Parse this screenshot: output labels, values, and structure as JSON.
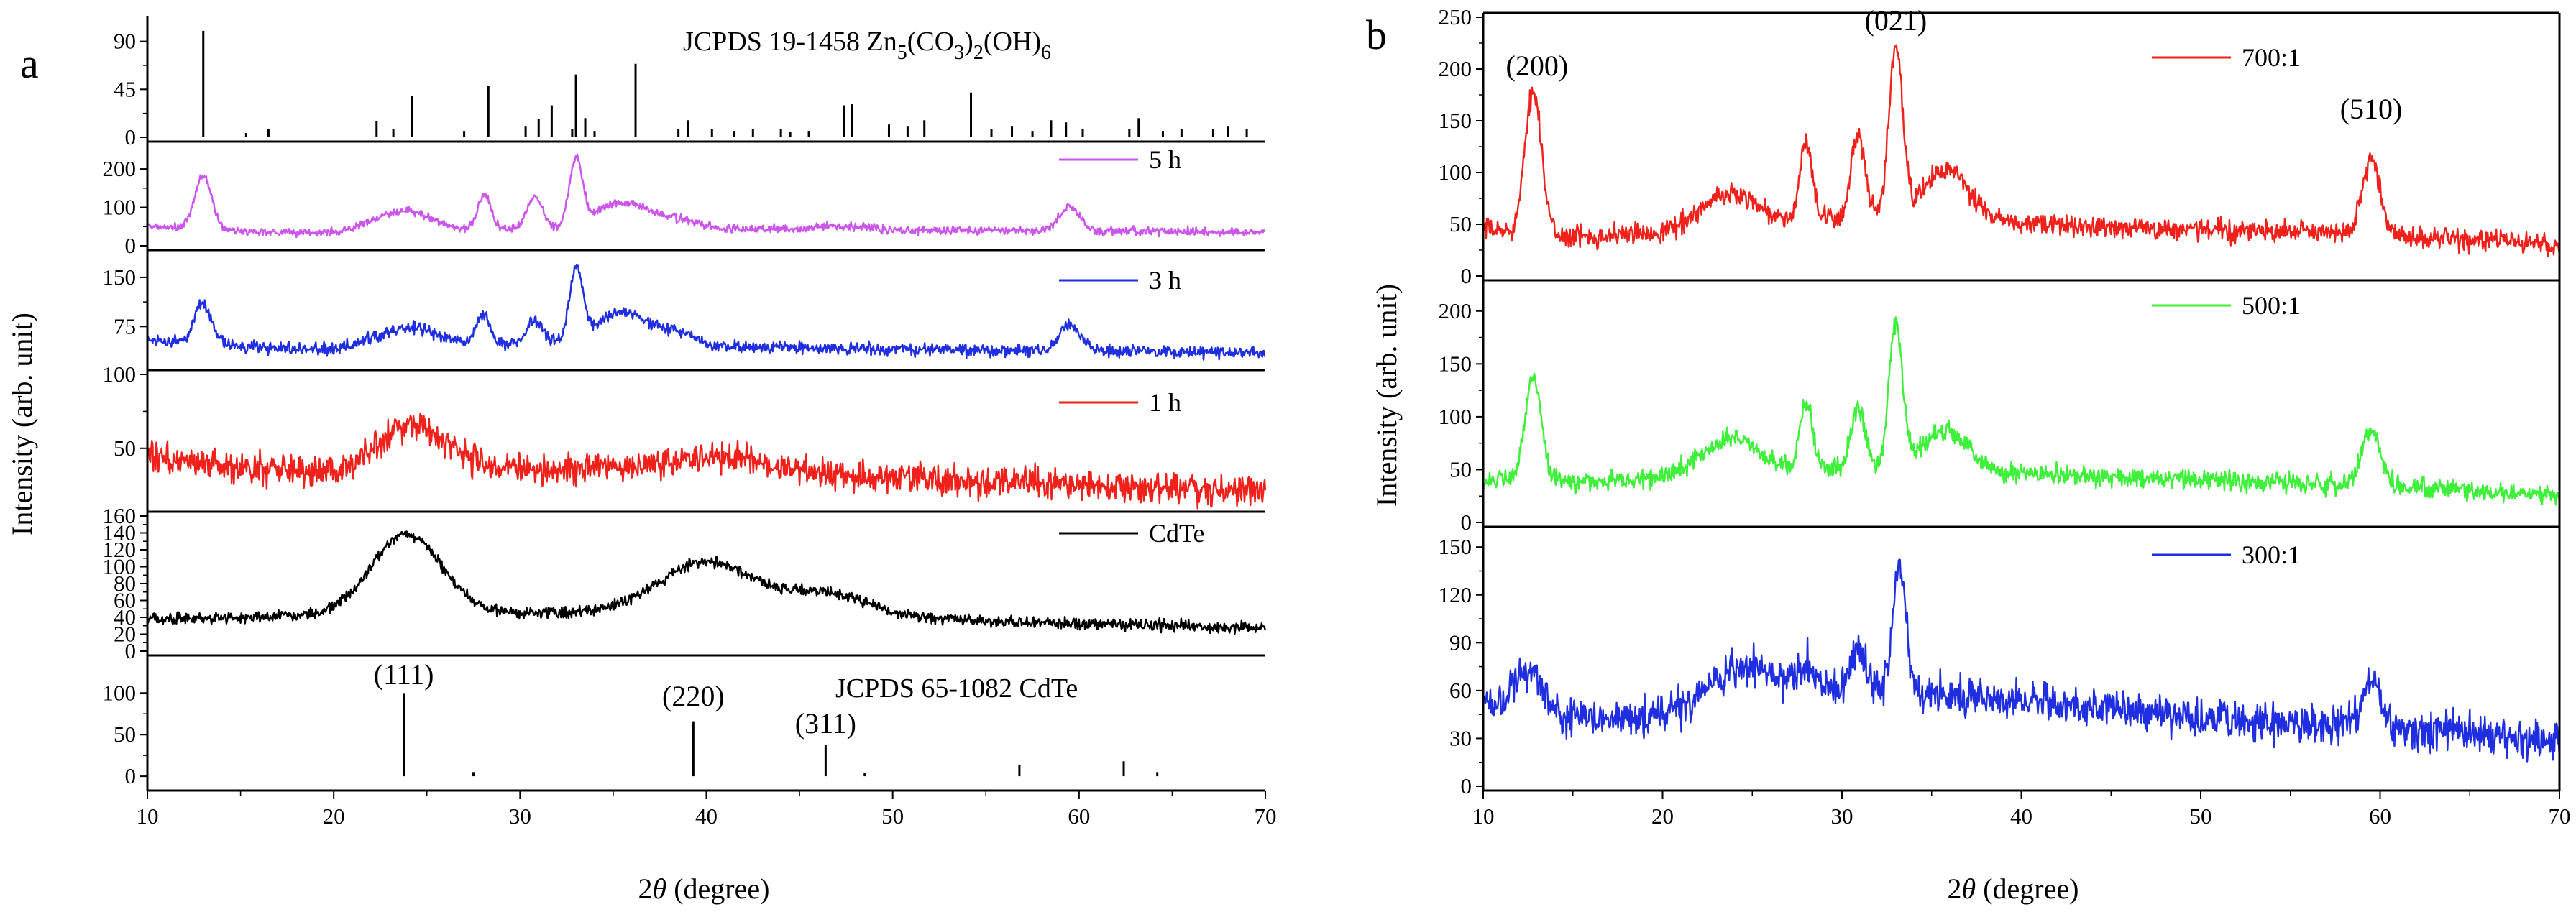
{
  "panels": {
    "a": {
      "letter": "a",
      "ylabel": "Intensity (arb. unit)",
      "xlabel_prefix": "2",
      "xlabel_theta": "θ",
      "xlabel_suffix": " (degree)"
    },
    "b": {
      "letter": "b",
      "ylabel": "Intensity (arb. unit)",
      "xlabel_prefix": "2",
      "xlabel_theta": "θ",
      "xlabel_suffix": " (degree)"
    }
  },
  "chart_data": [
    {
      "type": "line",
      "panel": "a",
      "x_range": [
        10,
        70
      ],
      "x_ticks": [
        10,
        20,
        30,
        40,
        50,
        60,
        70
      ],
      "xlabel": "2θ (degree)",
      "ylabel": "Intensity (arb. unit)",
      "subplots": [
        {
          "id": "a-ref-top",
          "kind": "reference_sticks",
          "title_main": "JCPDS 19-1458  Zn",
          "title_sub1": "5",
          "title_mid1": "(CO",
          "title_sub2": "3",
          "title_mid2": ")",
          "title_sub3": "2",
          "title_mid3": "(OH)",
          "title_sub4": "6",
          "title": "JCPDS 19-1458 Zn5(CO3)2(OH)6",
          "ylim": [
            0,
            110
          ],
          "y_ticks": [
            0,
            45,
            90
          ],
          "sticks": [
            [
              13.0,
              100
            ],
            [
              15.3,
              4
            ],
            [
              16.5,
              8
            ],
            [
              22.3,
              15
            ],
            [
              23.2,
              8
            ],
            [
              24.2,
              39
            ],
            [
              27.0,
              6
            ],
            [
              28.3,
              48
            ],
            [
              30.3,
              10
            ],
            [
              31.0,
              17
            ],
            [
              31.7,
              30
            ],
            [
              32.8,
              8
            ],
            [
              33.0,
              59
            ],
            [
              33.5,
              18
            ],
            [
              34.0,
              6
            ],
            [
              36.2,
              69
            ],
            [
              38.5,
              8
            ],
            [
              39.0,
              16
            ],
            [
              40.3,
              8
            ],
            [
              41.5,
              6
            ],
            [
              42.5,
              8
            ],
            [
              44.0,
              8
            ],
            [
              44.5,
              5
            ],
            [
              45.5,
              6
            ],
            [
              47.4,
              30
            ],
            [
              47.8,
              31
            ],
            [
              49.8,
              12
            ],
            [
              50.8,
              10
            ],
            [
              51.7,
              16
            ],
            [
              54.2,
              42
            ],
            [
              55.3,
              8
            ],
            [
              56.4,
              10
            ],
            [
              57.5,
              6
            ],
            [
              58.5,
              16
            ],
            [
              59.3,
              14
            ],
            [
              60.2,
              8
            ],
            [
              62.7,
              8
            ],
            [
              63.2,
              18
            ],
            [
              64.5,
              6
            ],
            [
              65.5,
              8
            ],
            [
              67.2,
              8
            ],
            [
              68.0,
              10
            ],
            [
              69.0,
              8
            ]
          ]
        },
        {
          "id": "a-5h",
          "kind": "pattern",
          "name": "5 h",
          "color": "#cc55ee",
          "ylim": [
            0,
            260
          ],
          "y_ticks": [
            0,
            100,
            200
          ],
          "baseline": [
            [
              10,
              50
            ],
            [
              15,
              38
            ],
            [
              20,
              33
            ],
            [
              25,
              40
            ],
            [
              30,
              45
            ],
            [
              40,
              45
            ],
            [
              50,
              40
            ],
            [
              60,
              40
            ],
            [
              70,
              35
            ]
          ],
          "peaks": [
            [
              13.0,
              140,
              0.45
            ],
            [
              22.5,
              25,
              1.2
            ],
            [
              24.3,
              40,
              1.2
            ],
            [
              28.1,
              90,
              0.35
            ],
            [
              30.8,
              85,
              0.4
            ],
            [
              33.0,
              175,
              0.35
            ],
            [
              35.5,
              70,
              1.4
            ],
            [
              38.5,
              20,
              1.0
            ],
            [
              47.5,
              10,
              1.5
            ],
            [
              59.5,
              60,
              0.55
            ]
          ],
          "noise": 8
        },
        {
          "id": "a-3h",
          "kind": "pattern",
          "name": "3 h",
          "color": "#1f2ee0",
          "ylim": [
            15,
            185
          ],
          "y_ticks": [
            75,
            150
          ],
          "baseline": [
            [
              10,
              56
            ],
            [
              15,
              45
            ],
            [
              20,
              38
            ],
            [
              25,
              45
            ],
            [
              30,
              50
            ],
            [
              40,
              45
            ],
            [
              50,
              40
            ],
            [
              60,
              38
            ],
            [
              70,
              34
            ]
          ],
          "peaks": [
            [
              13.0,
              60,
              0.45
            ],
            [
              22.5,
              15,
              1.2
            ],
            [
              24.5,
              25,
              1.2
            ],
            [
              28.0,
              45,
              0.35
            ],
            [
              30.8,
              35,
              0.4
            ],
            [
              33.0,
              110,
              0.35
            ],
            [
              35.5,
              50,
              1.4
            ],
            [
              38.5,
              15,
              1.0
            ],
            [
              59.5,
              40,
              0.55
            ]
          ],
          "noise": 7
        },
        {
          "id": "a-1h",
          "kind": "pattern",
          "name": "1 h",
          "color": "#f0211b",
          "ylim": [
            10,
            100
          ],
          "y_ticks": [
            50,
            100
          ],
          "baseline": [
            [
              10,
              45
            ],
            [
              15,
              36
            ],
            [
              20,
              34
            ],
            [
              25,
              40
            ],
            [
              30,
              36
            ],
            [
              40,
              36
            ],
            [
              50,
              30
            ],
            [
              60,
              25
            ],
            [
              70,
              21
            ]
          ],
          "peaks": [
            [
              24.2,
              25,
              1.8
            ],
            [
              41.0,
              8,
              2.5
            ]
          ],
          "noise": 8
        },
        {
          "id": "a-cdte",
          "kind": "pattern",
          "name": "CdTe",
          "color": "#000000",
          "ylim": [
            0,
            160
          ],
          "y_ticks": [
            0,
            20,
            40,
            60,
            80,
            100,
            120,
            140,
            160
          ],
          "baseline": [
            [
              10,
              38
            ],
            [
              15,
              40
            ],
            [
              20,
              42
            ],
            [
              30,
              45
            ],
            [
              40,
              48
            ],
            [
              50,
              40
            ],
            [
              60,
              32
            ],
            [
              70,
              28
            ]
          ],
          "peaks": [
            [
              23.9,
              95,
              1.9
            ],
            [
              40.0,
              58,
              2.5
            ],
            [
              46.5,
              25,
              2.3
            ]
          ],
          "noise": 5
        },
        {
          "id": "a-ref-bottom",
          "kind": "reference_sticks",
          "title": "JCPDS 65-1082  CdTe",
          "ylim": [
            -12,
            140
          ],
          "y_ticks": [
            0,
            50,
            100
          ],
          "sticks": [
            [
              23.76,
              100
            ],
            [
              27.5,
              5
            ],
            [
              39.3,
              66
            ],
            [
              46.4,
              38
            ],
            [
              48.5,
              4
            ],
            [
              56.8,
              14
            ],
            [
              62.4,
              18
            ],
            [
              64.2,
              5
            ]
          ],
          "labels": [
            {
              "text": "(111)",
              "x": 23.76
            },
            {
              "text": "(220)",
              "x": 39.3
            },
            {
              "text": "(311)",
              "x": 46.4
            }
          ]
        }
      ]
    },
    {
      "type": "line",
      "panel": "b",
      "x_range": [
        10,
        70
      ],
      "x_ticks": [
        10,
        20,
        30,
        40,
        50,
        60,
        70
      ],
      "xlabel": "2θ (degree)",
      "ylabel": "Intensity (arb. unit)",
      "subplots": [
        {
          "id": "b-700",
          "kind": "pattern",
          "name": "700:1",
          "color": "#f0211b",
          "ylim": [
            0,
            250
          ],
          "y_ticks": [
            0,
            50,
            100,
            150,
            200,
            250
          ],
          "baseline": [
            [
              10,
              45
            ],
            [
              15,
              38
            ],
            [
              20,
              42
            ],
            [
              25,
              50
            ],
            [
              30,
              55
            ],
            [
              40,
              50
            ],
            [
              50,
              45
            ],
            [
              60,
              40
            ],
            [
              70,
              30
            ]
          ],
          "peaks": [
            [
              12.8,
              140,
              0.45
            ],
            [
              22.5,
              15,
              1.2
            ],
            [
              24.3,
              25,
              1.2
            ],
            [
              28.0,
              75,
              0.35
            ],
            [
              30.9,
              80,
              0.4
            ],
            [
              33.0,
              165,
              0.38
            ],
            [
              35.8,
              50,
              1.3
            ],
            [
              59.5,
              70,
              0.5
            ]
          ],
          "noise": 8,
          "labels": [
            {
              "text": "(200)",
              "x": 13.0
            },
            {
              "text": "(021)",
              "x": 33.0
            },
            {
              "text": "(510)",
              "x": 59.5
            }
          ]
        },
        {
          "id": "b-500",
          "kind": "pattern",
          "name": "500:1",
          "color": "#3ef03a",
          "ylim": [
            0,
            225
          ],
          "y_ticks": [
            0,
            50,
            100,
            150,
            200
          ],
          "baseline": [
            [
              10,
              40
            ],
            [
              15,
              38
            ],
            [
              20,
              42
            ],
            [
              25,
              50
            ],
            [
              30,
              50
            ],
            [
              40,
              45
            ],
            [
              50,
              40
            ],
            [
              60,
              35
            ],
            [
              70,
              25
            ]
          ],
          "peaks": [
            [
              12.8,
              100,
              0.45
            ],
            [
              22.5,
              15,
              1.2
            ],
            [
              24.3,
              25,
              1.2
            ],
            [
              28.0,
              65,
              0.35
            ],
            [
              30.9,
              60,
              0.4
            ],
            [
              33.0,
              140,
              0.38
            ],
            [
              35.8,
              40,
              1.3
            ],
            [
              59.5,
              55,
              0.5
            ]
          ],
          "noise": 7
        },
        {
          "id": "b-300",
          "kind": "pattern",
          "name": "300:1",
          "color": "#1f2ee0",
          "ylim": [
            0,
            160
          ],
          "y_ticks": [
            0,
            30,
            60,
            90,
            120,
            150
          ],
          "baseline": [
            [
              10,
              55
            ],
            [
              15,
              42
            ],
            [
              20,
              45
            ],
            [
              25,
              58
            ],
            [
              30,
              62
            ],
            [
              40,
              55
            ],
            [
              50,
              42
            ],
            [
              60,
              38
            ],
            [
              70,
              28
            ]
          ],
          "peaks": [
            [
              12.5,
              25,
              0.7
            ],
            [
              24.5,
              18,
              1.5
            ],
            [
              28.0,
              15,
              0.5
            ],
            [
              30.9,
              25,
              0.4
            ],
            [
              33.2,
              80,
              0.35
            ],
            [
              59.5,
              32,
              0.5
            ]
          ],
          "noise": 9
        }
      ]
    }
  ]
}
